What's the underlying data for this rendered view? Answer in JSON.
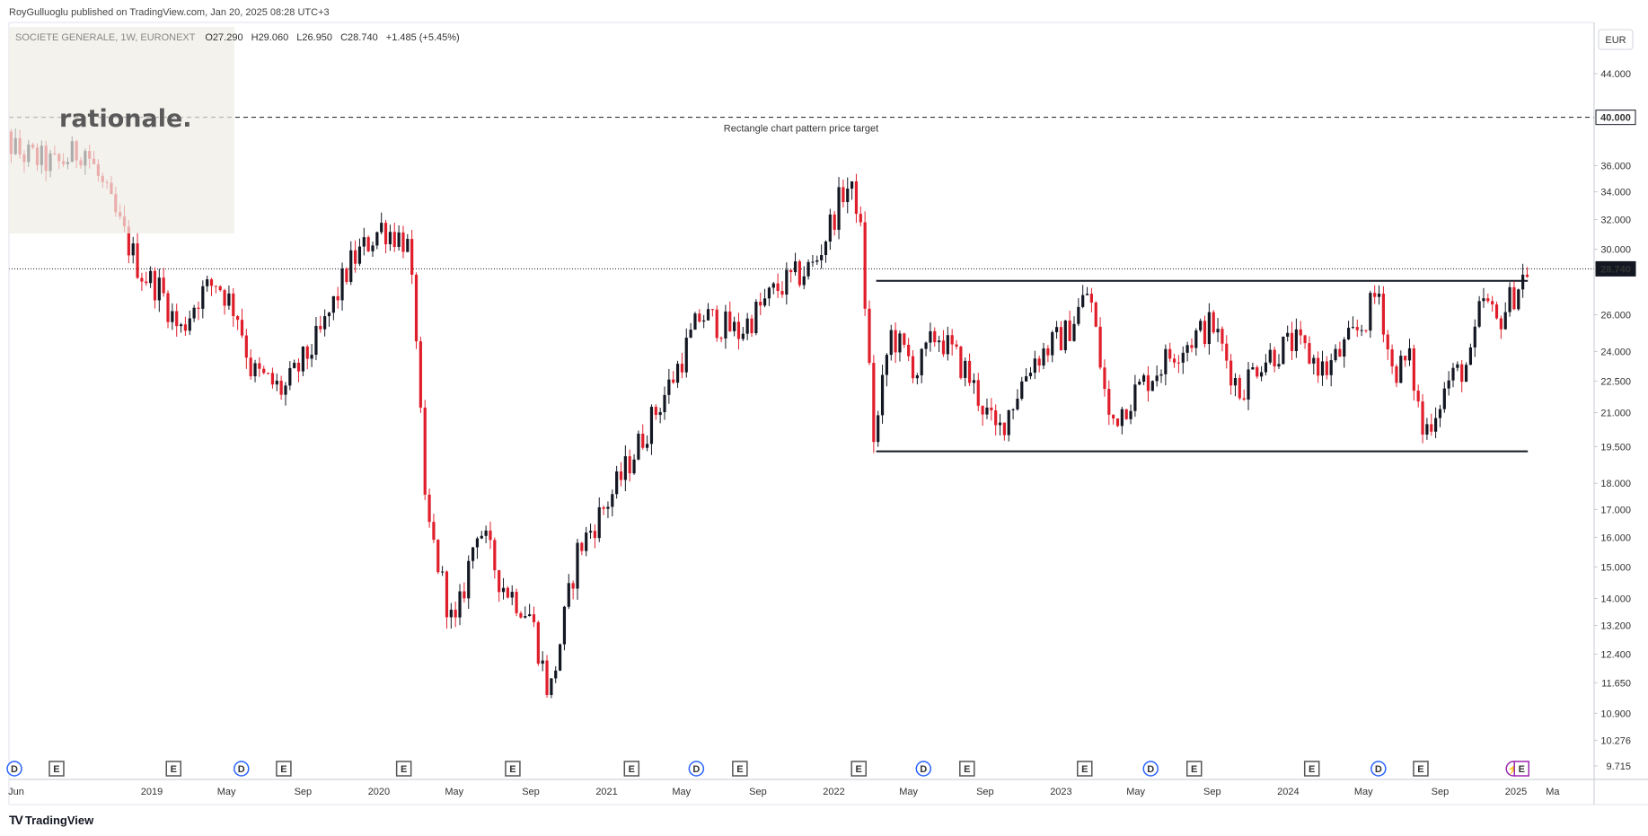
{
  "header": {
    "published": "RoyGulluoglu published on TradingView.com, Jan 20, 2025 08:28 UTC+3"
  },
  "legend": {
    "symbol": "SOCIETE GENERALE, 1W, EURONEXT",
    "open": "O27.290",
    "high": "H29.060",
    "low": "L26.950",
    "close": "C28.740",
    "change": "+1.485 (+5.45%)"
  },
  "watermark": "rationale.",
  "currency": "EUR",
  "footer": {
    "brand": "TradingView",
    "mark": "TV"
  },
  "colors": {
    "up": "#131722",
    "down": "#e01e2b",
    "accent": "#2962ff",
    "grid": "#e0e3eb"
  },
  "chart_data": {
    "type": "candlestick",
    "title": "",
    "y_axis": {
      "scale": "log",
      "ticks": [
        44.0,
        40.0,
        36.0,
        34.0,
        32.0,
        30.0,
        28.74,
        26.0,
        24.0,
        22.5,
        21.0,
        19.5,
        18.0,
        17.0,
        16.0,
        15.0,
        14.0,
        13.2,
        12.4,
        11.65,
        10.9,
        10.276,
        9.715
      ],
      "tick_labels": [
        "44.000",
        "40.000",
        "36.000",
        "34.000",
        "32.000",
        "30.000",
        "28.740",
        "26.000",
        "24.000",
        "22.500",
        "21.000",
        "19.500",
        "18.000",
        "17.000",
        "16.000",
        "15.000",
        "14.000",
        "13.200",
        "12.400",
        "11.650",
        "10.900",
        "10.276",
        "9.715"
      ],
      "highlight_labels": [
        "40.000",
        "28.740"
      ]
    },
    "x_axis": {
      "ticks": [
        "Jun",
        "2019",
        "May",
        "Sep",
        "2020",
        "May",
        "Sep",
        "2021",
        "May",
        "Sep",
        "2022",
        "May",
        "Sep",
        "2023",
        "May",
        "Sep",
        "2024",
        "May",
        "Sep",
        "2025",
        "Ma"
      ],
      "tick_dates": [
        "2018-06",
        "2019-01",
        "2019-05",
        "2019-09",
        "2020-01",
        "2020-05",
        "2020-09",
        "2021-01",
        "2021-05",
        "2021-09",
        "2022-01",
        "2022-05",
        "2022-09",
        "2023-01",
        "2023-05",
        "2023-09",
        "2024-01",
        "2024-05",
        "2024-09",
        "2025-01",
        "2025-03"
      ]
    },
    "anchors": [
      {
        "date": "2018-04-15",
        "price": 39.5
      },
      {
        "date": "2018-06-01",
        "price": 37.0
      },
      {
        "date": "2018-08-01",
        "price": 36.0
      },
      {
        "date": "2018-09-15",
        "price": 37.5
      },
      {
        "date": "2018-11-01",
        "price": 32.5
      },
      {
        "date": "2018-12-15",
        "price": 28.5
      },
      {
        "date": "2019-01-15",
        "price": 27.5
      },
      {
        "date": "2019-02-15",
        "price": 25.0
      },
      {
        "date": "2019-03-15",
        "price": 27.0
      },
      {
        "date": "2019-04-15",
        "price": 28.0
      },
      {
        "date": "2019-05-20",
        "price": 26.0
      },
      {
        "date": "2019-06-10",
        "price": 23.0
      },
      {
        "date": "2019-08-01",
        "price": 22.0
      },
      {
        "date": "2019-10-01",
        "price": 25.0
      },
      {
        "date": "2019-11-15",
        "price": 29.0
      },
      {
        "date": "2020-01-05",
        "price": 31.5
      },
      {
        "date": "2020-02-15",
        "price": 30.5
      },
      {
        "date": "2020-03-01",
        "price": 25.0
      },
      {
        "date": "2020-03-15",
        "price": 17.0
      },
      {
        "date": "2020-05-01",
        "price": 13.0
      },
      {
        "date": "2020-06-08",
        "price": 16.5
      },
      {
        "date": "2020-07-15",
        "price": 14.5
      },
      {
        "date": "2020-09-01",
        "price": 13.5
      },
      {
        "date": "2020-10-01",
        "price": 11.3
      },
      {
        "date": "2020-11-15",
        "price": 15.5
      },
      {
        "date": "2021-01-15",
        "price": 17.8
      },
      {
        "date": "2021-03-01",
        "price": 20.0
      },
      {
        "date": "2021-04-15",
        "price": 22.5
      },
      {
        "date": "2021-06-01",
        "price": 26.0
      },
      {
        "date": "2021-08-01",
        "price": 25.0
      },
      {
        "date": "2021-10-01",
        "price": 27.5
      },
      {
        "date": "2021-12-01",
        "price": 29.0
      },
      {
        "date": "2022-01-20",
        "price": 34.5
      },
      {
        "date": "2022-02-10",
        "price": 33.0
      },
      {
        "date": "2022-03-07",
        "price": 19.5
      },
      {
        "date": "2022-04-01",
        "price": 25.0
      },
      {
        "date": "2022-05-15",
        "price": 23.0
      },
      {
        "date": "2022-06-15",
        "price": 25.0
      },
      {
        "date": "2022-08-01",
        "price": 23.0
      },
      {
        "date": "2022-09-20",
        "price": 20.0
      },
      {
        "date": "2022-11-15",
        "price": 23.5
      },
      {
        "date": "2023-01-10",
        "price": 25.0
      },
      {
        "date": "2023-02-15",
        "price": 27.5
      },
      {
        "date": "2023-03-20",
        "price": 20.5
      },
      {
        "date": "2023-05-01",
        "price": 22.0
      },
      {
        "date": "2023-07-01",
        "price": 24.0
      },
      {
        "date": "2023-09-01",
        "price": 25.5
      },
      {
        "date": "2023-10-15",
        "price": 22.0
      },
      {
        "date": "2023-11-15",
        "price": 23.5
      },
      {
        "date": "2024-01-10",
        "price": 24.5
      },
      {
        "date": "2024-03-01",
        "price": 23.0
      },
      {
        "date": "2024-05-01",
        "price": 25.5
      },
      {
        "date": "2024-05-25",
        "price": 27.5
      },
      {
        "date": "2024-06-15",
        "price": 23.0
      },
      {
        "date": "2024-07-15",
        "price": 23.5
      },
      {
        "date": "2024-08-05",
        "price": 20.0
      },
      {
        "date": "2024-09-15",
        "price": 22.5
      },
      {
        "date": "2024-10-20",
        "price": 23.5
      },
      {
        "date": "2024-11-08",
        "price": 27.0
      },
      {
        "date": "2024-12-01",
        "price": 25.5
      },
      {
        "date": "2025-01-20",
        "price": 28.74
      }
    ],
    "last_price": 28.74,
    "annotations": [
      {
        "type": "horizontal-dashed",
        "price": 40.0,
        "label": "Rectangle chart pattern price target"
      },
      {
        "type": "horizontal-dotted",
        "price": 28.74
      },
      {
        "type": "segment",
        "from": {
          "date": "2022-03-10",
          "price": 28.0
        },
        "to": {
          "date": "2025-01-20",
          "price": 28.0
        }
      },
      {
        "type": "segment",
        "from": {
          "date": "2022-03-10",
          "price": 19.3
        },
        "to": {
          "date": "2025-01-20",
          "price": 19.3
        }
      }
    ],
    "events": [
      {
        "label": "D",
        "date": "2018-06-01",
        "color": "#2962ff"
      },
      {
        "label": "E",
        "date": "2018-08-01"
      },
      {
        "label": "E",
        "date": "2019-02-05"
      },
      {
        "label": "D",
        "date": "2019-05-25",
        "color": "#2962ff"
      },
      {
        "label": "E",
        "date": "2019-08-01"
      },
      {
        "label": "E",
        "date": "2020-02-10"
      },
      {
        "label": "E",
        "date": "2020-08-03"
      },
      {
        "label": "E",
        "date": "2021-02-10"
      },
      {
        "label": "D",
        "date": "2021-05-25",
        "color": "#2962ff"
      },
      {
        "label": "E",
        "date": "2021-08-03"
      },
      {
        "label": "E",
        "date": "2022-02-10"
      },
      {
        "label": "D",
        "date": "2022-05-25",
        "color": "#2962ff"
      },
      {
        "label": "E",
        "date": "2022-08-03"
      },
      {
        "label": "E",
        "date": "2023-02-08"
      },
      {
        "label": "D",
        "date": "2023-05-25",
        "color": "#2962ff"
      },
      {
        "label": "E",
        "date": "2023-08-03"
      },
      {
        "label": "E",
        "date": "2024-02-08"
      },
      {
        "label": "D",
        "date": "2024-05-25",
        "color": "#2962ff"
      },
      {
        "label": "E",
        "date": "2024-08-01"
      },
      {
        "label": "⚡",
        "date": "2024-12-28",
        "color": "#9c27b0"
      },
      {
        "label": "E",
        "date": "2025-01-10",
        "color": "#9c27b0"
      }
    ]
  }
}
